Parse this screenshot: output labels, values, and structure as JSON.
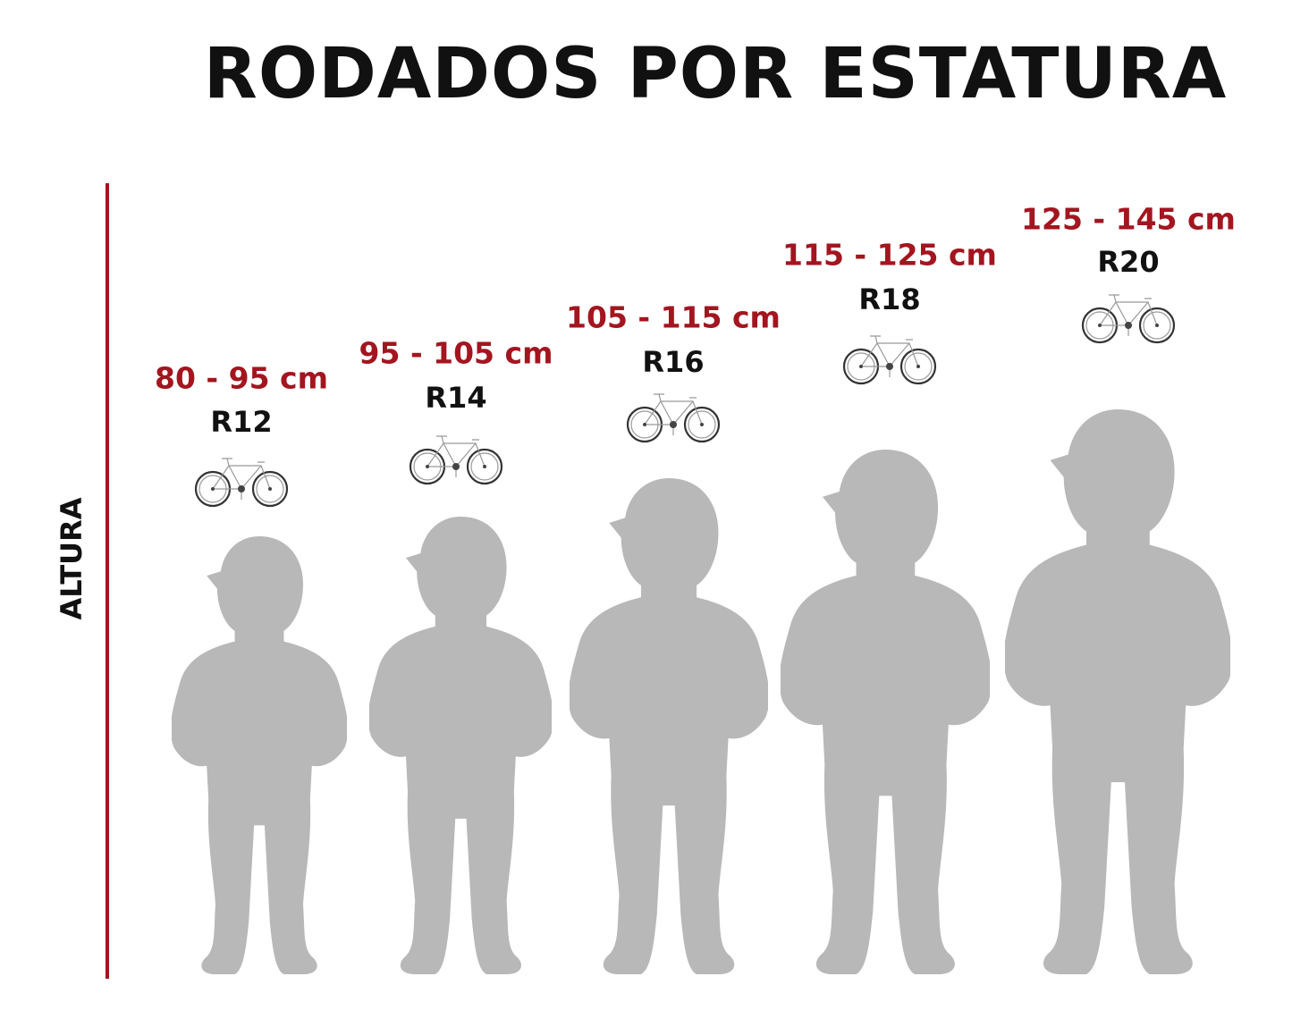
{
  "title": "RODADOS POR ESTATURA",
  "axis_label": "ALTURA",
  "colors": {
    "accent": "#a3151f",
    "silhouette": "#b8b8b8",
    "text": "#111111"
  },
  "items": [
    {
      "range": "80 - 95 cm",
      "size": "R12",
      "icon": "bicycle-icon"
    },
    {
      "range": "95 - 105 cm",
      "size": "R14",
      "icon": "bicycle-icon"
    },
    {
      "range": "105 - 115 cm",
      "size": "R16",
      "icon": "bicycle-icon"
    },
    {
      "range": "115 - 125 cm",
      "size": "R18",
      "icon": "bicycle-icon"
    },
    {
      "range": "125 - 145 cm",
      "size": "R20",
      "icon": "bicycle-icon"
    }
  ]
}
